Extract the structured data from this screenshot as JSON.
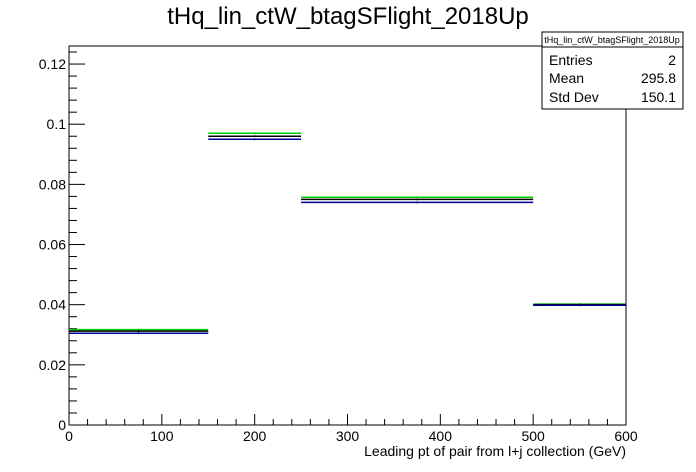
{
  "chart_data": {
    "type": "histogram",
    "title": "tHq_lin_ctW_btagSFlight_2018Up",
    "xlabel": "Leading pt of pair from l+j collection (GeV)",
    "ylabel": "",
    "xlim": [
      0,
      600
    ],
    "ylim": [
      0,
      0.126
    ],
    "x_ticks": [
      0,
      100,
      200,
      300,
      400,
      500,
      600
    ],
    "x_tick_labels": [
      "0",
      "100",
      "200",
      "300",
      "400",
      "500",
      "600"
    ],
    "y_ticks": [
      0,
      0.02,
      0.04,
      0.06,
      0.08,
      0.1,
      0.12
    ],
    "y_tick_labels": [
      "0",
      "0.02",
      "0.04",
      "0.06",
      "0.08",
      "0.1",
      "0.12"
    ],
    "bin_edges": [
      0,
      150,
      250,
      500,
      600
    ],
    "series": [
      {
        "color": "#00cc00",
        "values": [
          0.0317,
          0.097,
          0.0757,
          0.0402
        ]
      },
      {
        "color": "#000000",
        "values": [
          0.0312,
          0.096,
          0.075,
          0.04
        ]
      },
      {
        "color": "#000099",
        "values": [
          0.0305,
          0.095,
          0.074,
          0.0398
        ]
      }
    ],
    "stats_box": {
      "title": "tHq_lin_ctW_btagSFlight_2018Up",
      "rows": [
        {
          "label": "Entries",
          "value": "2"
        },
        {
          "label": "Mean",
          "value": "295.8"
        },
        {
          "label": "Std Dev",
          "value": "150.1"
        }
      ]
    },
    "grid": false,
    "legend": "none"
  }
}
